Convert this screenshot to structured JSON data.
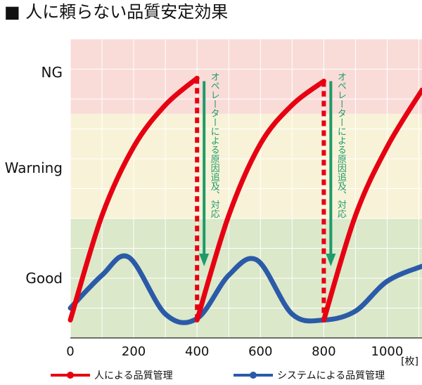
{
  "header": {
    "title": "■ 人に頼らない品質安定効果"
  },
  "chart_data": {
    "type": "line",
    "title": "■ 人に頼らない品質安定効果",
    "xlabel": "[枚]",
    "x_ticks": [
      0,
      200,
      400,
      600,
      800,
      1000
    ],
    "xlim": [
      0,
      1110
    ],
    "ylim": [
      0,
      10
    ],
    "y_levels": [
      {
        "label": "NG",
        "value": 8.9,
        "from": 7.5,
        "to": 10,
        "color": "#f9dcd8"
      },
      {
        "label": "Warning",
        "value": 5.7,
        "from": 4.0,
        "to": 7.5,
        "color": "#f8f3d8"
      },
      {
        "label": "Good",
        "value": 2.0,
        "from": 0,
        "to": 4.0,
        "color": "#dbe8c9"
      }
    ],
    "grid": true,
    "series": [
      {
        "name": "人による品質管理",
        "color": "#e60012",
        "x": [
          0,
          100,
          200,
          300,
          400,
          400,
          500,
          600,
          700,
          800,
          800,
          900,
          1000,
          1110
        ],
        "y": [
          0.6,
          4.1,
          6.4,
          7.8,
          8.7,
          0.6,
          4.1,
          6.5,
          7.8,
          8.6,
          0.6,
          4.1,
          6.4,
          8.3
        ]
      },
      {
        "name": "システムによる品質管理",
        "color": "#2b5aa8",
        "x": [
          0,
          100,
          185,
          300,
          400,
          500,
          590,
          700,
          800,
          900,
          1000,
          1110
        ],
        "y": [
          1.0,
          2.1,
          2.7,
          0.8,
          0.65,
          2.1,
          2.6,
          0.8,
          0.6,
          0.9,
          1.9,
          2.4
        ]
      }
    ],
    "annotations": [
      {
        "text": "オペレーターによる原因追及、対応",
        "x": 400
      },
      {
        "text": "オペレーターによる原因追及、対応",
        "x": 800
      }
    ]
  }
}
